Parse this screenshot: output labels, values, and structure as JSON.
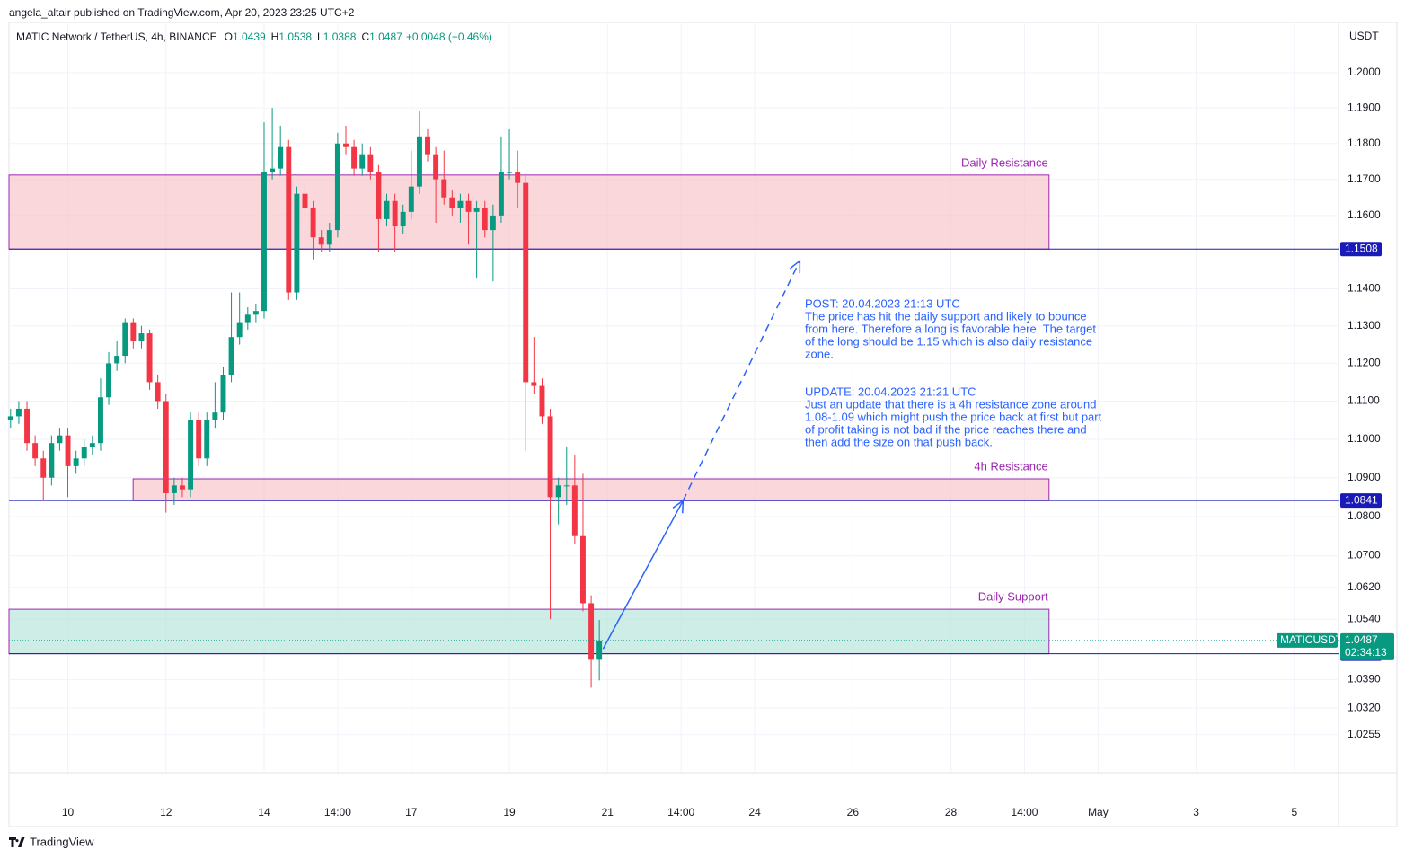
{
  "header": {
    "publisher": "angela_altair published on TradingView.com, Apr 20, 2023 23:25 UTC+2"
  },
  "footer": {
    "brand": "TradingView"
  },
  "chart_data": {
    "type": "candlestick",
    "title": "MATIC Network / TetherUS, 4h, BINANCE",
    "ohlc_labels": [
      "O",
      "H",
      "L",
      "C"
    ],
    "change": "+0.0048 (+0.46%)",
    "currency": "USDT",
    "up_color": "#089981",
    "down_color": "#f23645",
    "log_scale": true,
    "grid": true,
    "xlim": [
      8.8,
      35.9
    ],
    "ylim": [
      1.0163,
      1.2144
    ],
    "xticks": [
      10,
      12,
      14,
      {
        "value": 15.5,
        "label": "14:00"
      },
      17,
      19,
      21,
      {
        "value": 22.5,
        "label": "14:00"
      },
      24,
      26,
      28,
      {
        "value": 29.5,
        "label": "14:00"
      },
      {
        "value": 31,
        "label": "May"
      },
      {
        "value": 33,
        "label": "3"
      },
      {
        "value": 35,
        "label": "5"
      }
    ],
    "yticks": [
      {
        "value": 1.2,
        "label": "1.2000"
      },
      {
        "value": 1.19,
        "label": "1.1900"
      },
      {
        "value": 1.18,
        "label": "1.1800"
      },
      {
        "value": 1.17,
        "label": "1.1700"
      },
      {
        "value": 1.16,
        "label": "1.1600"
      },
      {
        "value": 1.14,
        "label": "1.1400"
      },
      {
        "value": 1.13,
        "label": "1.1300"
      },
      {
        "value": 1.12,
        "label": "1.1200"
      },
      {
        "value": 1.11,
        "label": "1.1100"
      },
      {
        "value": 1.1,
        "label": "1.1000"
      },
      {
        "value": 1.09,
        "label": "1.0900"
      },
      {
        "value": 1.08,
        "label": "1.0800"
      },
      {
        "value": 1.07,
        "label": "1.0700"
      },
      {
        "value": 1.062,
        "label": "1.0620"
      },
      {
        "value": 1.054,
        "label": "1.0540"
      },
      {
        "value": 1.039,
        "label": "1.0390"
      },
      {
        "value": 1.032,
        "label": "1.0320"
      },
      {
        "value": 1.0255,
        "label": "1.0255"
      }
    ],
    "x": [
      8.833,
      9,
      9.167,
      9.333,
      9.5,
      9.667,
      9.833,
      10,
      10.167,
      10.333,
      10.5,
      10.667,
      10.833,
      11,
      11.167,
      11.333,
      11.5,
      11.667,
      11.833,
      12,
      12.167,
      12.333,
      12.5,
      12.667,
      12.833,
      13,
      13.167,
      13.333,
      13.5,
      13.667,
      13.833,
      14,
      14.167,
      14.333,
      14.5,
      14.667,
      14.833,
      15,
      15.167,
      15.333,
      15.5,
      15.667,
      15.833,
      16,
      16.167,
      16.333,
      16.5,
      16.667,
      16.833,
      17,
      17.167,
      17.333,
      17.5,
      17.667,
      17.833,
      18,
      18.167,
      18.333,
      18.5,
      18.667,
      18.833,
      19,
      19.167,
      19.333,
      19.5,
      19.667,
      19.833,
      20,
      20.167,
      20.333,
      20.5,
      20.667,
      20.833
    ],
    "open": [
      1.105,
      1.106,
      1.108,
      1.099,
      1.095,
      1.09,
      1.099,
      1.101,
      1.093,
      1.095,
      1.098,
      1.099,
      1.111,
      1.12,
      1.122,
      1.131,
      1.126,
      1.128,
      1.115,
      1.11,
      1.086,
      1.088,
      1.087,
      1.105,
      1.095,
      1.105,
      1.107,
      1.117,
      1.127,
      1.131,
      1.133,
      1.134,
      1.172,
      1.173,
      1.179,
      1.139,
      1.166,
      1.162,
      1.154,
      1.152,
      1.156,
      1.18,
      1.179,
      1.173,
      1.177,
      1.172,
      1.159,
      1.164,
      1.157,
      1.161,
      1.168,
      1.182,
      1.177,
      1.17,
      1.165,
      1.162,
      1.164,
      1.161,
      1.162,
      1.156,
      1.16,
      1.172,
      1.172,
      1.169,
      1.115,
      1.114,
      1.106,
      1.085,
      1.088,
      1.088,
      1.075,
      1.058,
      1.0439
    ],
    "high": [
      1.108,
      1.11,
      1.11,
      1.101,
      1.097,
      1.101,
      1.103,
      1.103,
      1.097,
      1.1,
      1.101,
      1.116,
      1.123,
      1.126,
      1.132,
      1.132,
      1.13,
      1.129,
      1.117,
      1.112,
      1.09,
      1.09,
      1.107,
      1.107,
      1.107,
      1.115,
      1.119,
      1.139,
      1.139,
      1.135,
      1.136,
      1.186,
      1.19,
      1.185,
      1.181,
      1.168,
      1.17,
      1.164,
      1.156,
      1.158,
      1.183,
      1.185,
      1.181,
      1.18,
      1.179,
      1.174,
      1.166,
      1.166,
      1.163,
      1.178,
      1.189,
      1.184,
      1.179,
      1.178,
      1.167,
      1.166,
      1.166,
      1.164,
      1.164,
      1.163,
      1.182,
      1.184,
      1.178,
      1.171,
      1.127,
      1.116,
      1.108,
      1.09,
      1.098,
      1.096,
      1.091,
      1.06,
      1.0538
    ],
    "low": [
      1.103,
      1.104,
      1.097,
      1.093,
      1.084,
      1.088,
      1.097,
      1.085,
      1.091,
      1.093,
      1.096,
      1.097,
      1.109,
      1.118,
      1.12,
      1.124,
      1.124,
      1.113,
      1.108,
      1.081,
      1.083,
      1.085,
      1.085,
      1.093,
      1.093,
      1.103,
      1.105,
      1.115,
      1.125,
      1.129,
      1.131,
      1.132,
      1.17,
      1.171,
      1.137,
      1.137,
      1.16,
      1.148,
      1.15,
      1.15,
      1.154,
      1.177,
      1.171,
      1.171,
      1.17,
      1.15,
      1.157,
      1.15,
      1.155,
      1.159,
      1.166,
      1.175,
      1.158,
      1.163,
      1.16,
      1.158,
      1.152,
      1.143,
      1.154,
      1.142,
      1.158,
      1.17,
      1.162,
      1.097,
      1.112,
      1.104,
      1.054,
      1.078,
      1.083,
      1.073,
      1.056,
      1.037,
      1.0388
    ],
    "close": [
      1.106,
      1.108,
      1.099,
      1.095,
      1.09,
      1.099,
      1.101,
      1.093,
      1.095,
      1.098,
      1.099,
      1.111,
      1.12,
      1.122,
      1.131,
      1.126,
      1.128,
      1.115,
      1.11,
      1.086,
      1.088,
      1.087,
      1.105,
      1.095,
      1.105,
      1.107,
      1.117,
      1.127,
      1.131,
      1.133,
      1.134,
      1.172,
      1.173,
      1.179,
      1.139,
      1.166,
      1.162,
      1.154,
      1.152,
      1.156,
      1.18,
      1.179,
      1.173,
      1.177,
      1.172,
      1.159,
      1.164,
      1.157,
      1.161,
      1.168,
      1.182,
      1.177,
      1.17,
      1.165,
      1.162,
      1.164,
      1.161,
      1.162,
      1.156,
      1.16,
      1.172,
      1.172,
      1.169,
      1.115,
      1.114,
      1.106,
      1.085,
      1.088,
      1.088,
      1.075,
      1.058,
      1.0439,
      1.0487
    ],
    "zones": [
      {
        "label": "Daily Resistance",
        "y0": 1.1508,
        "y1": 1.1712,
        "x0": 8.8,
        "x1": 30,
        "fill": "#f7c6cc",
        "stroke": "#9c27b0"
      },
      {
        "label": "4h Resistance",
        "y0": 1.0841,
        "y1": 1.0897,
        "x0": 11.33,
        "x1": 30,
        "fill": "#f7c6cc",
        "stroke": "#9c27b0"
      },
      {
        "label": "Daily Support",
        "y0": 1.0454,
        "y1": 1.0565,
        "x0": 8.8,
        "x1": 30,
        "fill": "#b9e5dc",
        "stroke": "#9c27b0"
      }
    ],
    "levels": [
      1.1508,
      1.0841,
      1.0454
    ],
    "level_color": "#1a1ab8",
    "symbol": "MATICUSDT",
    "countdown": "02:34:13",
    "arrows": [
      {
        "style": "solid",
        "x": [
          20.91,
          22.54
        ],
        "y": [
          1.0466,
          1.0841
        ],
        "color": "#2962ff"
      },
      {
        "style": "dashed",
        "x": [
          22.54,
          24.92
        ],
        "y": [
          1.0841,
          1.1476
        ],
        "color": "#2962ff"
      }
    ],
    "notes": [
      [
        "POST: 20.04.2023 21:13 UTC",
        "The price has hit the daily support and likely to bounce",
        "from here. Therefore a long is favorable here. The target",
        "of the long should be 1.15 which is also daily resistance",
        "zone."
      ],
      [
        "UPDATE: 20.04.2023 21:21 UTC",
        "Just an update that there is a 4h resistance zone around",
        "1.08-1.09 which might push the price back at first but part",
        "of profit taking is not bad if the price reaches there and",
        "then add the size on that push back."
      ]
    ]
  }
}
